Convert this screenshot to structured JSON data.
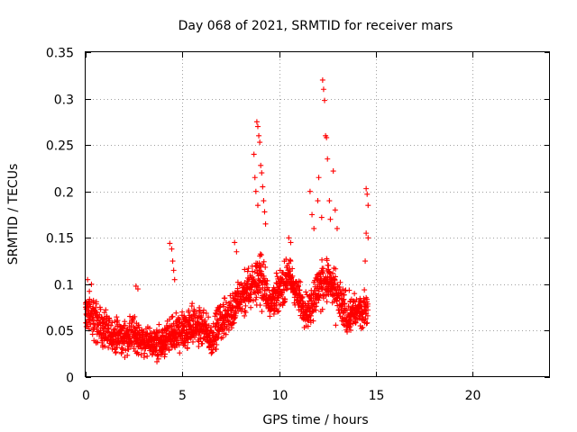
{
  "chart_data": {
    "type": "scatter",
    "title": "Day 068 of 2021, SRMTID for receiver mars",
    "xlabel": "GPS time / hours",
    "ylabel": "SRMTID / TECUs",
    "xlim": [
      0,
      24
    ],
    "ylim": [
      0,
      0.35
    ],
    "grid": true,
    "marker": "+",
    "color": "#ff0000",
    "x_ticks": [
      0,
      5,
      10,
      15,
      20
    ],
    "x_tick_labels": [
      "0",
      "5",
      "10",
      "15",
      "20"
    ],
    "y_ticks": [
      0,
      0.05,
      0.1,
      0.15,
      0.2,
      0.25,
      0.3,
      0.35
    ],
    "y_tick_labels": [
      "0",
      "0.05",
      "0.1",
      "0.15",
      "0.2",
      "0.25",
      "0.3",
      "0.35"
    ],
    "series": [
      {
        "name": "SRMTID",
        "envelope": [
          {
            "x": 0.0,
            "low": 0.035,
            "high": 0.105
          },
          {
            "x": 0.5,
            "low": 0.028,
            "high": 0.095
          },
          {
            "x": 1.0,
            "low": 0.02,
            "high": 0.075
          },
          {
            "x": 1.5,
            "low": 0.018,
            "high": 0.07
          },
          {
            "x": 2.0,
            "low": 0.018,
            "high": 0.065
          },
          {
            "x": 2.5,
            "low": 0.02,
            "high": 0.075
          },
          {
            "x": 3.0,
            "low": 0.015,
            "high": 0.06
          },
          {
            "x": 3.5,
            "low": 0.012,
            "high": 0.06
          },
          {
            "x": 4.0,
            "low": 0.012,
            "high": 0.06
          },
          {
            "x": 4.5,
            "low": 0.015,
            "high": 0.075
          },
          {
            "x": 5.0,
            "low": 0.02,
            "high": 0.08
          },
          {
            "x": 5.5,
            "low": 0.025,
            "high": 0.09
          },
          {
            "x": 6.0,
            "low": 0.025,
            "high": 0.08
          },
          {
            "x": 6.5,
            "low": 0.015,
            "high": 0.065
          },
          {
            "x": 7.0,
            "low": 0.03,
            "high": 0.09
          },
          {
            "x": 7.5,
            "low": 0.04,
            "high": 0.1
          },
          {
            "x": 8.0,
            "low": 0.05,
            "high": 0.115
          },
          {
            "x": 8.5,
            "low": 0.06,
            "high": 0.13
          },
          {
            "x": 9.0,
            "low": 0.07,
            "high": 0.15
          },
          {
            "x": 9.5,
            "low": 0.055,
            "high": 0.11
          },
          {
            "x": 10.0,
            "low": 0.065,
            "high": 0.12
          },
          {
            "x": 10.5,
            "low": 0.08,
            "high": 0.14
          },
          {
            "x": 11.0,
            "low": 0.06,
            "high": 0.11
          },
          {
            "x": 11.5,
            "low": 0.04,
            "high": 0.1
          },
          {
            "x": 12.0,
            "low": 0.06,
            "high": 0.13
          },
          {
            "x": 12.5,
            "low": 0.07,
            "high": 0.14
          },
          {
            "x": 13.0,
            "low": 0.05,
            "high": 0.12
          },
          {
            "x": 13.5,
            "low": 0.035,
            "high": 0.1
          },
          {
            "x": 14.0,
            "low": 0.045,
            "high": 0.095
          },
          {
            "x": 14.6,
            "low": 0.05,
            "high": 0.1
          }
        ],
        "spikes": [
          {
            "x": 0.1,
            "y": 0.105
          },
          {
            "x": 0.3,
            "y": 0.1
          },
          {
            "x": 2.6,
            "y": 0.098
          },
          {
            "x": 2.7,
            "y": 0.095
          },
          {
            "x": 4.35,
            "y": 0.144
          },
          {
            "x": 4.45,
            "y": 0.138
          },
          {
            "x": 4.5,
            "y": 0.125
          },
          {
            "x": 4.55,
            "y": 0.115
          },
          {
            "x": 4.6,
            "y": 0.105
          },
          {
            "x": 7.7,
            "y": 0.145
          },
          {
            "x": 7.8,
            "y": 0.135
          },
          {
            "x": 8.7,
            "y": 0.24
          },
          {
            "x": 8.75,
            "y": 0.215
          },
          {
            "x": 8.8,
            "y": 0.2
          },
          {
            "x": 8.85,
            "y": 0.275
          },
          {
            "x": 8.9,
            "y": 0.27
          },
          {
            "x": 8.95,
            "y": 0.26
          },
          {
            "x": 9.0,
            "y": 0.253
          },
          {
            "x": 9.05,
            "y": 0.228
          },
          {
            "x": 9.1,
            "y": 0.22
          },
          {
            "x": 9.15,
            "y": 0.205
          },
          {
            "x": 9.2,
            "y": 0.19
          },
          {
            "x": 9.25,
            "y": 0.178
          },
          {
            "x": 9.3,
            "y": 0.165
          },
          {
            "x": 8.9,
            "y": 0.185
          },
          {
            "x": 10.5,
            "y": 0.15
          },
          {
            "x": 10.6,
            "y": 0.145
          },
          {
            "x": 11.6,
            "y": 0.2
          },
          {
            "x": 11.7,
            "y": 0.175
          },
          {
            "x": 11.8,
            "y": 0.16
          },
          {
            "x": 12.0,
            "y": 0.19
          },
          {
            "x": 12.05,
            "y": 0.215
          },
          {
            "x": 12.2,
            "y": 0.172
          },
          {
            "x": 12.25,
            "y": 0.32
          },
          {
            "x": 12.3,
            "y": 0.31
          },
          {
            "x": 12.35,
            "y": 0.298
          },
          {
            "x": 12.4,
            "y": 0.26
          },
          {
            "x": 12.45,
            "y": 0.258
          },
          {
            "x": 12.5,
            "y": 0.235
          },
          {
            "x": 12.6,
            "y": 0.19
          },
          {
            "x": 12.65,
            "y": 0.17
          },
          {
            "x": 12.8,
            "y": 0.222
          },
          {
            "x": 12.9,
            "y": 0.18
          },
          {
            "x": 13.0,
            "y": 0.16
          },
          {
            "x": 14.5,
            "y": 0.203
          },
          {
            "x": 14.55,
            "y": 0.197
          },
          {
            "x": 14.6,
            "y": 0.185
          },
          {
            "x": 14.5,
            "y": 0.155
          },
          {
            "x": 14.6,
            "y": 0.15
          },
          {
            "x": 14.45,
            "y": 0.125
          }
        ]
      }
    ]
  }
}
